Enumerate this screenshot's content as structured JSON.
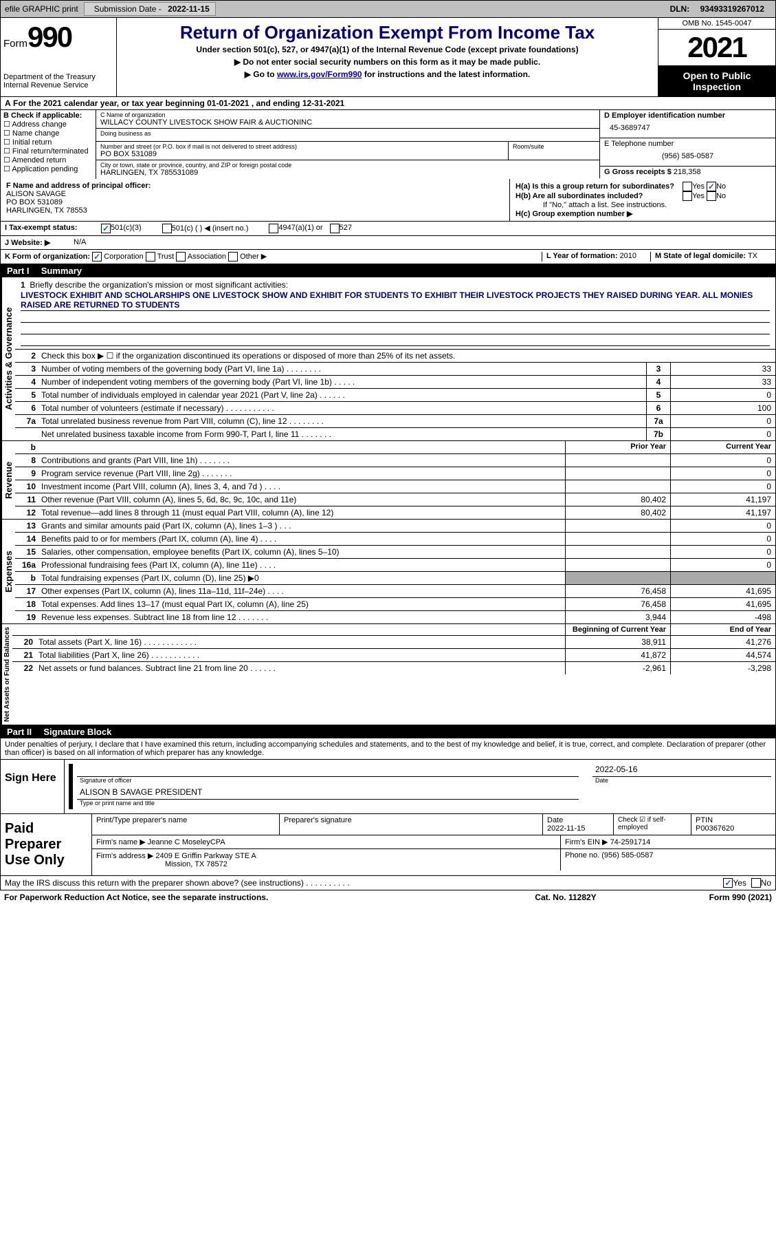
{
  "topbar": {
    "efile": "efile GRAPHIC print",
    "sub_lbl": "Submission Date - ",
    "sub_date": "2022-11-15",
    "dln_lbl": "DLN: ",
    "dln": "93493319267012"
  },
  "header": {
    "form_word": "Form",
    "form_num": "990",
    "title": "Return of Organization Exempt From Income Tax",
    "sub1": "Under section 501(c), 527, or 4947(a)(1) of the Internal Revenue Code (except private foundations)",
    "sub2": "▶ Do not enter social security numbers on this form as it may be made public.",
    "sub3_prefix": "▶ Go to ",
    "sub3_link": "www.irs.gov/Form990",
    "sub3_suffix": " for instructions and the latest information.",
    "dept": "Department of the Treasury",
    "irs": "Internal Revenue Service",
    "omb": "OMB No. 1545-0047",
    "year": "2021",
    "inspect": "Open to Public Inspection"
  },
  "rowA": {
    "a": "A",
    "text": " For the 2021 calendar year, or tax year beginning 01-01-2021    , and ending 12-31-2021"
  },
  "B": {
    "lbl": "B Check if applicable:",
    "items": [
      "Address change",
      "Name change",
      "Initial return",
      "Final return/terminated",
      "Amended return",
      "Application pending"
    ]
  },
  "C": {
    "name_lbl": "C Name of organization",
    "name": "WILLACY COUNTY LIVESTOCK SHOW FAIR & AUCTIONINC",
    "dba_lbl": "Doing business as",
    "dba": "",
    "addr_lbl": "Number and street (or P.O. box if mail is not delivered to street address)",
    "room_lbl": "Room/suite",
    "addr": "PO BOX 531089",
    "city_lbl": "City or town, state or province, country, and ZIP or foreign postal code",
    "city": "HARLINGEN, TX  785531089"
  },
  "D": {
    "lbl": "D Employer identification number",
    "val": "45-3689747",
    "e_lbl": "E Telephone number",
    "e_val": "(956) 585-0587",
    "g_lbl": "G Gross receipts $",
    "g_val": "218,358"
  },
  "F": {
    "lbl": "F  Name and address of principal officer:",
    "name": "ALISON SAVAGE",
    "addr1": "PO BOX 531089",
    "addr2": "HARLINGEN, TX  78553"
  },
  "H": {
    "a_lbl": "H(a)  Is this a group return for subordinates?",
    "a_yes": "Yes",
    "a_no": "No",
    "b_lbl": "H(b)  Are all subordinates included?",
    "b_yes": "Yes",
    "b_no": "No",
    "b_note": "If \"No,\" attach a list. See instructions.",
    "c_lbl": "H(c)  Group exemption number ▶"
  },
  "I": {
    "lbl": "I  Tax-exempt status:",
    "opt1": "501(c)(3)",
    "opt2": "501(c) (  ) ◀ (insert no.)",
    "opt3": "4947(a)(1) or",
    "opt4": "527"
  },
  "J": {
    "lbl": "J  Website: ▶",
    "val": "N/A"
  },
  "K": {
    "lbl": "K Form of organization:",
    "o1": "Corporation",
    "o2": "Trust",
    "o3": "Association",
    "o4": "Other ▶",
    "l_lbl": "L Year of formation:",
    "l_val": "2010",
    "m_lbl": "M State of legal domicile:",
    "m_val": "TX"
  },
  "partI": {
    "num": "Part I",
    "title": "Summary"
  },
  "mission": {
    "num": "1",
    "lbl": "Briefly describe the organization's mission or most significant activities:",
    "text": "LIVESTOCK EXHIBIT AND SCHOLARSHIPS ONE LIVESTOCK SHOW AND EXHIBIT FOR STUDENTS TO EXHIBIT THEIR LIVESTOCK PROJECTS THEY RAISED DURING YEAR. ALL MONIES RAISED ARE RETURNED TO STUDENTS"
  },
  "line2": {
    "num": "2",
    "txt": "Check this box ▶ ☐  if the organization discontinued its operations or disposed of more than 25% of its net assets."
  },
  "govlines": [
    {
      "n": "3",
      "t": "Number of voting members of the governing body (Part VI, line 1a)  .    .    .    .    .    .    .    .",
      "b": "3",
      "v": "33"
    },
    {
      "n": "4",
      "t": "Number of independent voting members of the governing body (Part VI, line 1b)  .    .    .    .    .",
      "b": "4",
      "v": "33"
    },
    {
      "n": "5",
      "t": "Total number of individuals employed in calendar year 2021 (Part V, line 2a)  .    .    .    .    .    .",
      "b": "5",
      "v": "0"
    },
    {
      "n": "6",
      "t": "Total number of volunteers (estimate if necessary)    .    .    .    .    .    .    .    .    .    .    .",
      "b": "6",
      "v": "100"
    },
    {
      "n": "7a",
      "t": "Total unrelated business revenue from Part VIII, column (C), line 12  .    .    .    .    .    .    .    .",
      "b": "7a",
      "v": "0"
    },
    {
      "n": "",
      "t": "Net unrelated business taxable income from Form 990-T, Part I, line 11  .    .    .    .    .    .    .",
      "b": "7b",
      "v": "0"
    }
  ],
  "colheaders": {
    "b": "b",
    "prior": "Prior Year",
    "curr": "Current Year"
  },
  "revenue": [
    {
      "n": "8",
      "t": "Contributions and grants (Part VIII, line 1h)   .    .    .    .    .    .    .",
      "p": "",
      "c": "0"
    },
    {
      "n": "9",
      "t": "Program service revenue (Part VIII, line 2g)   .    .    .    .    .    .    .",
      "p": "",
      "c": "0"
    },
    {
      "n": "10",
      "t": "Investment income (Part VIII, column (A), lines 3, 4, and 7d )   .    .    .    .",
      "p": "",
      "c": "0"
    },
    {
      "n": "11",
      "t": "Other revenue (Part VIII, column (A), lines 5, 6d, 8c, 9c, 10c, and 11e)",
      "p": "80,402",
      "c": "41,197"
    },
    {
      "n": "12",
      "t": "Total revenue—add lines 8 through 11 (must equal Part VIII, column (A), line 12)",
      "p": "80,402",
      "c": "41,197"
    }
  ],
  "expenses": [
    {
      "n": "13",
      "t": "Grants and similar amounts paid (Part IX, column (A), lines 1–3 )  .    .    .",
      "p": "",
      "c": "0"
    },
    {
      "n": "14",
      "t": "Benefits paid to or for members (Part IX, column (A), line 4)  .    .    .    .",
      "p": "",
      "c": "0"
    },
    {
      "n": "15",
      "t": "Salaries, other compensation, employee benefits (Part IX, column (A), lines 5–10)",
      "p": "",
      "c": "0"
    },
    {
      "n": "16a",
      "t": "Professional fundraising fees (Part IX, column (A), line 11e)   .    .    .    .",
      "p": "",
      "c": "0"
    },
    {
      "n": "b",
      "t": "Total fundraising expenses (Part IX, column (D), line 25) ▶0",
      "p": "grey",
      "c": "grey"
    },
    {
      "n": "17",
      "t": "Other expenses (Part IX, column (A), lines 11a–11d, 11f–24e)   .    .    .    .",
      "p": "76,458",
      "c": "41,695"
    },
    {
      "n": "18",
      "t": "Total expenses. Add lines 13–17 (must equal Part IX, column (A), line 25)",
      "p": "76,458",
      "c": "41,695"
    },
    {
      "n": "19",
      "t": "Revenue less expenses. Subtract line 18 from line 12  .    .    .    .    .    .    .",
      "p": "3,944",
      "c": "-498"
    }
  ],
  "netheaders": {
    "beg": "Beginning of Current Year",
    "end": "End of Year"
  },
  "net": [
    {
      "n": "20",
      "t": "Total assets (Part X, line 16)  .    .    .    .    .    .    .    .    .    .    .    .",
      "p": "38,911",
      "c": "41,276"
    },
    {
      "n": "21",
      "t": "Total liabilities (Part X, line 26)  .    .    .    .    .    .    .    .    .    .    .",
      "p": "41,872",
      "c": "44,574"
    },
    {
      "n": "22",
      "t": "Net assets or fund balances. Subtract line 21 from line 20   .    .    .    .    .    .",
      "p": "-2,961",
      "c": "-3,298"
    }
  ],
  "sidelabels": {
    "gov": "Activities & Governance",
    "rev": "Revenue",
    "exp": "Expenses",
    "net": "Net Assets or Fund Balances"
  },
  "partII": {
    "num": "Part II",
    "title": "Signature Block"
  },
  "penalties": "Under penalties of perjury, I declare that I have examined this return, including accompanying schedules and statements, and to the best of my knowledge and belief, it is true, correct, and complete. Declaration of preparer (other than officer) is based on all information of which preparer has any knowledge.",
  "sign": {
    "here": "Sign Here",
    "sig_lbl": "Signature of officer",
    "date_lbl": "Date",
    "date": "2022-05-16",
    "name": "ALISON B SAVAGE  PRESIDENT",
    "name_lbl": "Type or print name and title"
  },
  "paid": {
    "title": "Paid Preparer Use Only",
    "h1": "Print/Type preparer's name",
    "h2": "Preparer's signature",
    "h3_lbl": "Date",
    "h3": "2022-11-15",
    "h4": "Check ☑ if self-employed",
    "h5_lbl": "PTIN",
    "h5": "P00367620",
    "firm_lbl": "Firm's name     ▶",
    "firm": "Jeanne C MoseleyCPA",
    "ein_lbl": "Firm's EIN ▶",
    "ein": "74-2591714",
    "addr_lbl": "Firm's address ▶",
    "addr1": "2409 E Griffin Parkway STE A",
    "addr2": "Mission, TX  78572",
    "phone_lbl": "Phone no.",
    "phone": "(956) 585-0587"
  },
  "discuss": {
    "txt": "May the IRS discuss this return with the preparer shown above? (see instructions)   .    .    .    .    .    .    .    .    .    .",
    "yes": "Yes",
    "no": "No"
  },
  "footer": {
    "left": "For Paperwork Reduction Act Notice, see the separate instructions.",
    "mid": "Cat. No. 11282Y",
    "right": "Form 990 (2021)"
  }
}
